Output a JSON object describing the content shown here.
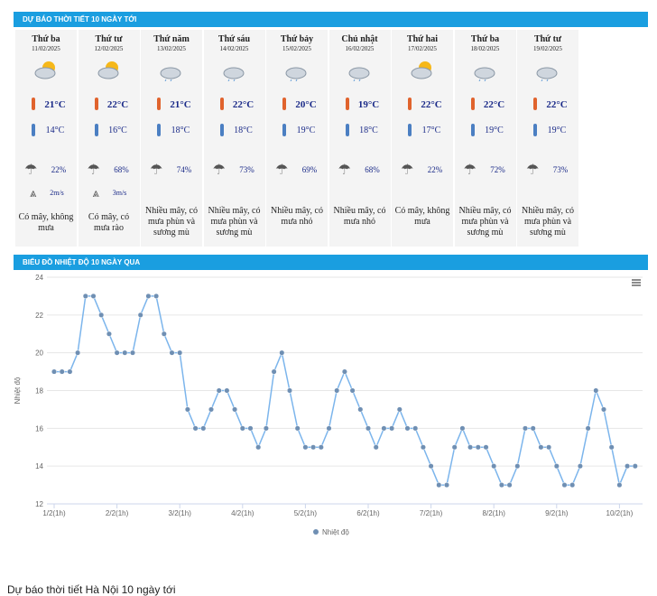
{
  "forecast": {
    "title": "DỰ BÁO THỜI TIẾT 10 NGÀY TỚI",
    "days": [
      {
        "day": "Thứ ba",
        "date": "11/02/2025",
        "high": "21°C",
        "low": "14°C",
        "humidity": "22%",
        "wind": "2m/s",
        "desc": "Có mây, không mưa"
      },
      {
        "day": "Thứ tư",
        "date": "12/02/2025",
        "high": "22°C",
        "low": "16°C",
        "humidity": "68%",
        "wind": "3m/s",
        "desc": "Có mây, có mưa rào"
      },
      {
        "day": "Thứ năm",
        "date": "13/02/2025",
        "high": "21°C",
        "low": "18°C",
        "humidity": "74%",
        "desc": "Nhiều mây, có mưa phùn và sương mù"
      },
      {
        "day": "Thứ sáu",
        "date": "14/02/2025",
        "high": "22°C",
        "low": "18°C",
        "humidity": "73%",
        "desc": "Nhiều mây, có mưa phùn và sương mù"
      },
      {
        "day": "Thứ bảy",
        "date": "15/02/2025",
        "high": "20°C",
        "low": "19°C",
        "humidity": "69%",
        "desc": "Nhiều mây, có mưa nhỏ"
      },
      {
        "day": "Chủ nhật",
        "date": "16/02/2025",
        "high": "19°C",
        "low": "18°C",
        "humidity": "68%",
        "desc": "Nhiều mây, có mưa nhỏ"
      },
      {
        "day": "Thứ hai",
        "date": "17/02/2025",
        "high": "22°C",
        "low": "17°C",
        "humidity": "22%",
        "desc": "Có mây, không mưa"
      },
      {
        "day": "Thứ ba",
        "date": "18/02/2025",
        "high": "22°C",
        "low": "19°C",
        "humidity": "72%",
        "desc": "Nhiều mây, có mưa phùn và sương mù"
      },
      {
        "day": "Thứ tư",
        "date": "19/02/2025",
        "high": "22°C",
        "low": "19°C",
        "humidity": "73%",
        "desc": "Nhiều mây, có mưa phùn và sương mù"
      }
    ]
  },
  "history": {
    "title": "BIỂU ĐỒ NHIỆT ĐỘ 10 NGÀY QUA"
  },
  "chart_data": {
    "type": "line",
    "ylabel": "Nhiệt độ",
    "grid": true,
    "ylim": [
      12,
      24
    ],
    "yticks": [
      12,
      14,
      16,
      18,
      20,
      22,
      24
    ],
    "categories": [
      "1/2(1h)",
      null,
      null,
      null,
      null,
      null,
      null,
      null,
      "2/2(1h)",
      null,
      null,
      null,
      null,
      null,
      null,
      null,
      "3/2(1h)",
      null,
      null,
      null,
      null,
      null,
      null,
      null,
      "4/2(1h)",
      null,
      null,
      null,
      null,
      null,
      null,
      null,
      "5/2(1h)",
      null,
      null,
      null,
      null,
      null,
      null,
      null,
      "6/2(1h)",
      null,
      null,
      null,
      null,
      null,
      null,
      null,
      "7/2(1h)",
      null,
      null,
      null,
      null,
      null,
      null,
      null,
      "8/2(1h)",
      null,
      null,
      null,
      null,
      null,
      null,
      null,
      "9/2(1h)",
      null,
      null,
      null,
      null,
      null,
      null,
      null,
      "10/2(1h)",
      null,
      null
    ],
    "series": [
      {
        "name": "Nhiệt độ",
        "color": "#7cb5ec",
        "marker": "#6f8fb3",
        "values": [
          19,
          19,
          19,
          20,
          23,
          23,
          22,
          21,
          20,
          20,
          20,
          22,
          23,
          23,
          21,
          20,
          20,
          17,
          16,
          16,
          17,
          18,
          18,
          17,
          16,
          16,
          15,
          16,
          19,
          20,
          18,
          16,
          15,
          15,
          15,
          16,
          18,
          19,
          18,
          17,
          16,
          15,
          16,
          16,
          17,
          16,
          16,
          15,
          14,
          13,
          13,
          15,
          16,
          15,
          15,
          15,
          14,
          13,
          13,
          14,
          16,
          16,
          15,
          15,
          14,
          13,
          13,
          14,
          16,
          18,
          17,
          15,
          13,
          14,
          14
        ]
      }
    ]
  },
  "footer": "Dự báo thời tiết Hà Nội 10 ngày tới"
}
